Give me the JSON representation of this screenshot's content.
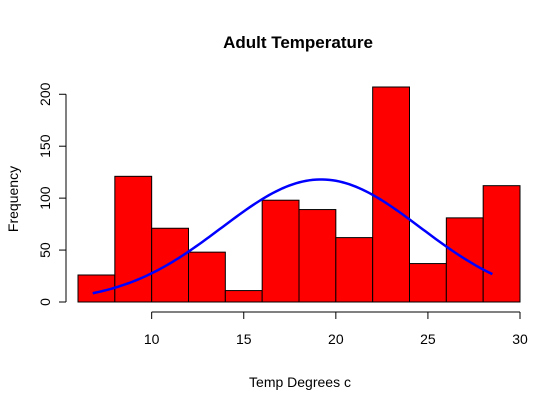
{
  "chart_data": {
    "type": "bar",
    "title": "Adult Temperature",
    "xlabel": "Temp Degrees c",
    "ylabel": "Frequency",
    "bins": [
      {
        "from": 6,
        "to": 8,
        "count": 26
      },
      {
        "from": 8,
        "to": 10,
        "count": 121
      },
      {
        "from": 10,
        "to": 12,
        "count": 71
      },
      {
        "from": 12,
        "to": 14,
        "count": 48
      },
      {
        "from": 14,
        "to": 16,
        "count": 11
      },
      {
        "from": 16,
        "to": 18,
        "count": 98
      },
      {
        "from": 18,
        "to": 20,
        "count": 89
      },
      {
        "from": 20,
        "to": 22,
        "count": 62
      },
      {
        "from": 22,
        "to": 24,
        "count": 207
      },
      {
        "from": 24,
        "to": 26,
        "count": 37
      },
      {
        "from": 26,
        "to": 28,
        "count": 81
      },
      {
        "from": 28,
        "to": 30,
        "count": 112
      }
    ],
    "x_ticks": [
      10,
      15,
      20,
      25,
      30
    ],
    "y_ticks": [
      0,
      50,
      100,
      150,
      200
    ],
    "xlim": [
      6,
      30
    ],
    "ylim": [
      0,
      207
    ],
    "x_axis_range": [
      10,
      30
    ],
    "y_axis_range": [
      0,
      200
    ],
    "grid": false,
    "bar_color": "#ff0000",
    "curve": {
      "type": "normal-density",
      "mean": 19.2,
      "sd": 5.4,
      "peak_frequency": 118,
      "x_range": [
        6.8,
        28.5
      ],
      "color": "#0000ff"
    }
  }
}
